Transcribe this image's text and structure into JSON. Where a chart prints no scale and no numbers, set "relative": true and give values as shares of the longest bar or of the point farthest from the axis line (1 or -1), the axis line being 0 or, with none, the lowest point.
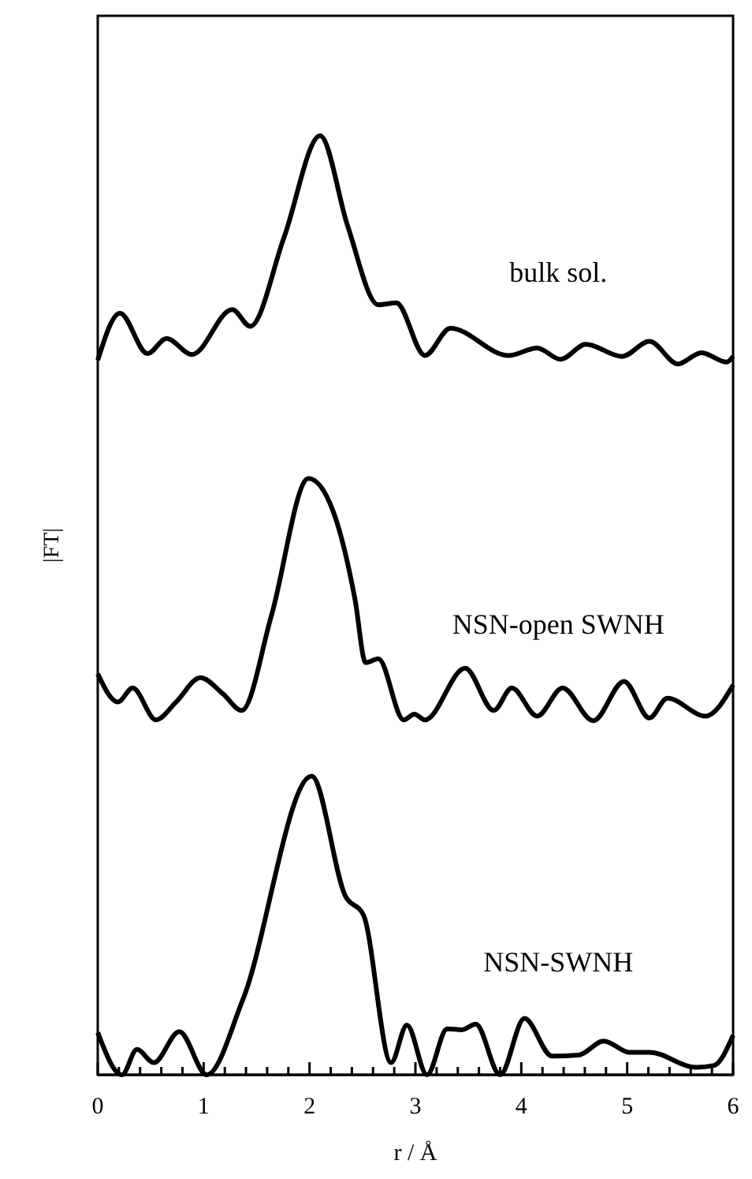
{
  "chart_data": {
    "type": "line",
    "relative": true,
    "xlabel": "r / Å",
    "ylabel": "|FT|",
    "xlim": [
      0,
      6
    ],
    "xticks": [
      0,
      {
        "value": 0.2,
        "label": null
      },
      {
        "value": 0.4,
        "label": null
      },
      {
        "value": 0.6,
        "label": null
      },
      {
        "value": 0.8,
        "label": null
      },
      1,
      {
        "value": 1.2,
        "label": null
      },
      {
        "value": 1.4,
        "label": null
      },
      {
        "value": 1.6,
        "label": null
      },
      {
        "value": 1.8,
        "label": null
      },
      2,
      {
        "value": 2.2,
        "label": null
      },
      {
        "value": 2.4,
        "label": null
      },
      {
        "value": 2.6,
        "label": null
      },
      {
        "value": 2.8,
        "label": null
      },
      3,
      {
        "value": 3.2,
        "label": null
      },
      {
        "value": 3.4,
        "label": null
      },
      {
        "value": 3.6,
        "label": null
      },
      {
        "value": 3.8,
        "label": null
      },
      4,
      {
        "value": 4.2,
        "label": null
      },
      {
        "value": 4.4,
        "label": null
      },
      {
        "value": 4.6,
        "label": null
      },
      {
        "value": 4.8,
        "label": null
      },
      5,
      {
        "value": 5.2,
        "label": null
      },
      {
        "value": 5.4,
        "label": null
      },
      {
        "value": 5.6,
        "label": null
      },
      {
        "value": 5.8,
        "label": null
      },
      6
    ],
    "tick_labels": "x",
    "grid": false,
    "legend": false,
    "series": [
      {
        "name": "bulk sol.",
        "color": "#000000",
        "x": [
          0,
          0.21,
          0.47,
          0.65,
          0.89,
          1.27,
          1.44,
          1.76,
          2.1,
          2.36,
          2.65,
          2.82,
          3.09,
          3.33,
          3.88,
          4.15,
          4.37,
          4.61,
          4.95,
          5.21,
          5.48,
          5.7,
          5.94,
          6
        ],
        "values": [
          0.761,
          0.811,
          0.768,
          0.784,
          0.767,
          0.815,
          0.797,
          0.892,
          1,
          0.904,
          0.82,
          0.822,
          0.766,
          0.795,
          0.766,
          0.774,
          0.762,
          0.778,
          0.765,
          0.781,
          0.757,
          0.769,
          0.759,
          0.765
        ]
      },
      {
        "name": "NSN-open SWNH",
        "color": "#000000",
        "x": [
          0,
          0.19,
          0.33,
          0.55,
          0.74,
          0.97,
          1.18,
          1.36,
          1.64,
          1.99,
          2.22,
          2.43,
          2.53,
          2.65,
          2.89,
          2.99,
          3.09,
          3.47,
          3.74,
          3.91,
          4.15,
          4.39,
          4.68,
          4.97,
          5.21,
          5.38,
          5.74,
          6
        ],
        "values": [
          0.427,
          0.397,
          0.412,
          0.378,
          0.397,
          0.423,
          0.406,
          0.388,
          0.489,
          0.635,
          0.601,
          0.506,
          0.439,
          0.443,
          0.378,
          0.384,
          0.378,
          0.433,
          0.388,
          0.412,
          0.382,
          0.412,
          0.377,
          0.419,
          0.38,
          0.401,
          0.382,
          0.415
        ]
      },
      {
        "name": "NSN-SWNH",
        "color": "#000000",
        "x": [
          0,
          0.23,
          0.37,
          0.53,
          0.77,
          1.03,
          1.37,
          2.02,
          2.34,
          2.51,
          2.77,
          2.92,
          3.11,
          3.3,
          3.44,
          3.57,
          3.8,
          4.03,
          4.29,
          4.54,
          4.78,
          5.02,
          5.21,
          5.65,
          5.82,
          6
        ],
        "values": [
          0.045,
          0,
          0.027,
          0.013,
          0.046,
          0,
          0.08,
          0.318,
          0.19,
          0.17,
          0.013,
          0.053,
          0,
          0.049,
          0.048,
          0.054,
          0,
          0.06,
          0.02,
          0.021,
          0.036,
          0.024,
          0.024,
          0.008,
          0.01,
          0.042
        ]
      }
    ]
  }
}
